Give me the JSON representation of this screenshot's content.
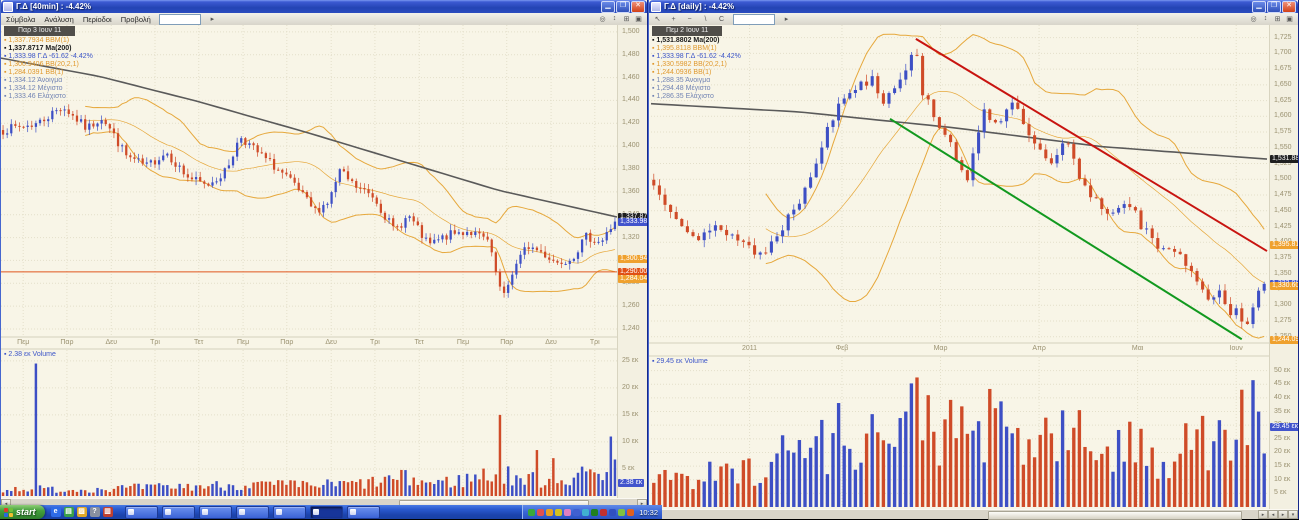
{
  "colors": {
    "up": "#3d4fc5",
    "down": "#cf4b28",
    "ma": "#5a5a5a",
    "bb": "#e6a83c",
    "grid": "#e3dfca",
    "axis_text": "#9a9170"
  },
  "windows": {
    "left": {
      "title": "Γ.Δ [40min] : -4.42%",
      "menu": [
        "Σύμβολα",
        "Ανάλυση",
        "Περίοδοι",
        "Προβολή"
      ],
      "toolbar_icons": [],
      "search_value": "",
      "go_icon": "▸",
      "right_icons": [
        {
          "name": "zoom-range-icon",
          "glyph": "◎"
        },
        {
          "name": "scale-toggle-icon",
          "glyph": "↕"
        },
        {
          "name": "grid-toggle-icon",
          "glyph": "⊞"
        },
        {
          "name": "maximize-pane-icon",
          "glyph": "▣"
        }
      ],
      "legend": {
        "tab": "Παρ 3 Ιουν 11",
        "lines": [
          {
            "text": "1,337.7934 BBM(1)",
            "color": "#e0992e"
          },
          {
            "text": "1,337.8717 Ma(200)",
            "color": "#1a1a1a",
            "bold": true
          },
          {
            "text": "1,333.98 Γ.Δ -61.62 -4.42%",
            "color": "#3c55c8"
          },
          {
            "text": "1,300.9406 BB(20,2,1)",
            "color": "#e0992e"
          },
          {
            "text": "1,284.0391 BB(1)",
            "color": "#e0992e"
          },
          {
            "text": "1,334.12 Άνοιγμα",
            "color": "#7284b4"
          },
          {
            "text": "1,334.12 Μέγιστο",
            "color": "#7284b4"
          },
          {
            "text": "1,333.46 Ελάχιστο",
            "color": "#7284b4"
          }
        ]
      },
      "chart_data": {
        "type": "candlestick",
        "timeframe": "40min",
        "bars": 150,
        "seed": 7,
        "noise": 4,
        "ylim": [
          1233,
          1506
        ],
        "yticks": [
          1240,
          1260,
          1280,
          1300,
          1320,
          1340,
          1360,
          1380,
          1400,
          1420,
          1440,
          1460,
          1480,
          1500
        ],
        "price_path": [
          [
            0,
            1414
          ],
          [
            0.057,
            1420
          ],
          [
            0.097,
            1435
          ],
          [
            0.137,
            1415
          ],
          [
            0.162,
            1426
          ],
          [
            0.202,
            1391
          ],
          [
            0.234,
            1382
          ],
          [
            0.267,
            1395
          ],
          [
            0.299,
            1374
          ],
          [
            0.331,
            1365
          ],
          [
            0.364,
            1378
          ],
          [
            0.388,
            1409
          ],
          [
            0.412,
            1396
          ],
          [
            0.444,
            1382
          ],
          [
            0.477,
            1365
          ],
          [
            0.509,
            1343
          ],
          [
            0.533,
            1352
          ],
          [
            0.55,
            1378
          ],
          [
            0.574,
            1365
          ],
          [
            0.606,
            1356
          ],
          [
            0.639,
            1326
          ],
          [
            0.663,
            1339
          ],
          [
            0.695,
            1313
          ],
          [
            0.728,
            1322
          ],
          [
            0.76,
            1326
          ],
          [
            0.792,
            1317
          ],
          [
            0.817,
            1265
          ],
          [
            0.833,
            1291
          ],
          [
            0.857,
            1313
          ],
          [
            0.881,
            1307
          ],
          [
            0.905,
            1298
          ],
          [
            0.93,
            1303
          ],
          [
            0.954,
            1321
          ],
          [
            0.978,
            1316
          ],
          [
            1,
            1334
          ]
        ],
        "last_close": 1333.98,
        "ma_path": [
          [
            0,
            1477
          ],
          [
            0.16,
            1461
          ],
          [
            0.32,
            1439
          ],
          [
            0.49,
            1413
          ],
          [
            0.65,
            1387
          ],
          [
            0.81,
            1361
          ],
          [
            1,
            1338
          ]
        ],
        "bb": {
          "window": 20,
          "mult": 2
        },
        "hlines": [
          {
            "price": 1290,
            "color": "#e0561e"
          }
        ],
        "xticks": [
          {
            "t": 0.036,
            "label": "Πεμ"
          },
          {
            "t": 0.107,
            "label": "Παρ"
          },
          {
            "t": 0.179,
            "label": "Δευ"
          },
          {
            "t": 0.25,
            "label": "Τρι"
          },
          {
            "t": 0.321,
            "label": "Τετ"
          },
          {
            "t": 0.393,
            "label": "Πεμ"
          },
          {
            "t": 0.464,
            "label": "Παρ"
          },
          {
            "t": 0.536,
            "label": "Δευ"
          },
          {
            "t": 0.607,
            "label": "Τρι"
          },
          {
            "t": 0.679,
            "label": "Τετ"
          },
          {
            "t": 0.75,
            "label": "Πεμ"
          },
          {
            "t": 0.821,
            "label": "Παρ"
          },
          {
            "t": 0.893,
            "label": "Δευ"
          },
          {
            "t": 0.964,
            "label": "Τρι"
          }
        ],
        "badges": [
          {
            "label": "1,337.87",
            "price": 1337.87,
            "bg": "#1f1f1f",
            "fg": "#fff"
          },
          {
            "label": "1,333.98",
            "price": 1333.98,
            "bg": "#4254cc",
            "fg": "#fff"
          },
          {
            "label": "1,300.94",
            "price": 1300.94,
            "bg": "#efa12e",
            "fg": "#fff"
          },
          {
            "label": "1,290.00",
            "price": 1290.0,
            "bg": "#e04f14",
            "fg": "#fff"
          },
          {
            "label": "1,284.04",
            "price": 1284.04,
            "bg": "#efa12e",
            "fg": "#fff"
          }
        ],
        "volume": {
          "legend": "2.38 εκ Volume",
          "legend_color": "#3c55c8",
          "ylim": 27,
          "ticks": [
            {
              "v": 5,
              "label": "5 εκ"
            },
            {
              "v": 10,
              "label": "10 εκ"
            },
            {
              "v": 15,
              "label": "15 εκ"
            },
            {
              "v": 20,
              "label": "20 εκ"
            },
            {
              "v": 25,
              "label": "25 εκ"
            }
          ],
          "profile": [
            [
              0,
              1.3
            ],
            [
              0.05,
              1.6
            ],
            [
              0.1,
              1.2
            ],
            [
              0.2,
              1.6
            ],
            [
              0.3,
              1.9
            ],
            [
              0.4,
              2.3
            ],
            [
              0.5,
              2.1
            ],
            [
              0.6,
              2.6
            ],
            [
              0.65,
              3.6
            ],
            [
              0.7,
              2.6
            ],
            [
              0.75,
              3.1
            ],
            [
              0.8,
              4.6
            ],
            [
              0.85,
              3.4
            ],
            [
              0.9,
              3.1
            ],
            [
              0.95,
              4.1
            ],
            [
              1,
              6.5
            ]
          ],
          "spikes": [
            [
              0.052,
              24.5
            ],
            [
              0.81,
              15
            ],
            [
              0.875,
              8.5
            ],
            [
              0.9,
              7
            ],
            [
              0.995,
              11
            ]
          ],
          "badge": {
            "label": "2.38 εκ",
            "v": 2.38,
            "bg": "#4254cc",
            "fg": "#fff"
          }
        }
      }
    },
    "right": {
      "title": "Γ.Δ [daily] : -4.42%",
      "menu": [],
      "toolbar_icons": [
        {
          "name": "cursor-tool-icon",
          "glyph": "↖"
        },
        {
          "name": "crosshair-tool-icon",
          "glyph": "+"
        },
        {
          "name": "zoom-out-tool-icon",
          "glyph": "−"
        },
        {
          "name": "trendline-tool-icon",
          "glyph": "\\"
        },
        {
          "name": "text-tool-icon",
          "glyph": "C"
        }
      ],
      "search_value": "",
      "go_icon": "▸",
      "right_icons": [
        {
          "name": "zoom-range-icon",
          "glyph": "◎"
        },
        {
          "name": "scale-toggle-icon",
          "glyph": "↕"
        },
        {
          "name": "grid-toggle-icon",
          "glyph": "⊞"
        },
        {
          "name": "maximize-pane-icon",
          "glyph": "▣"
        }
      ],
      "legend": {
        "tab": "Πεμ 2 Ιουν 11",
        "lines": [
          {
            "text": "1,531.8802 Ma(200)",
            "color": "#1a1a1a",
            "bold": true
          },
          {
            "text": "1,395.8118 BBM(1)",
            "color": "#e0992e"
          },
          {
            "text": "1,333.98 Γ.Δ -61.62 -4.42%",
            "color": "#3c55c8"
          },
          {
            "text": "1,330.5982 BB(20,2,1)",
            "color": "#e0992e"
          },
          {
            "text": "1,244.0936 BB(1)",
            "color": "#e0992e"
          },
          {
            "text": "1,288.35 Άνοιγμα",
            "color": "#7284b4"
          },
          {
            "text": "1,294.48 Μέγιστο",
            "color": "#7284b4"
          },
          {
            "text": "1,286.35 Ελάχιστο",
            "color": "#7284b4"
          }
        ]
      },
      "chart_data": {
        "type": "candlestick",
        "timeframe": "daily",
        "bars": 110,
        "seed": 13,
        "noise": 9,
        "ylim": [
          1240,
          1745
        ],
        "yticks": [
          1250,
          1275,
          1300,
          1325,
          1350,
          1375,
          1400,
          1425,
          1450,
          1475,
          1500,
          1525,
          1550,
          1575,
          1600,
          1625,
          1650,
          1675,
          1700,
          1725
        ],
        "price_path": [
          [
            0,
            1489
          ],
          [
            0.073,
            1402
          ],
          [
            0.106,
            1426
          ],
          [
            0.179,
            1378
          ],
          [
            0.237,
            1465
          ],
          [
            0.285,
            1577
          ],
          [
            0.31,
            1632
          ],
          [
            0.334,
            1648
          ],
          [
            0.359,
            1664
          ],
          [
            0.375,
            1624
          ],
          [
            0.432,
            1704
          ],
          [
            0.44,
            1640
          ],
          [
            0.465,
            1593
          ],
          [
            0.481,
            1569
          ],
          [
            0.498,
            1513
          ],
          [
            0.514,
            1505
          ],
          [
            0.538,
            1608
          ],
          [
            0.563,
            1593
          ],
          [
            0.587,
            1616
          ],
          [
            0.604,
            1593
          ],
          [
            0.628,
            1545
          ],
          [
            0.652,
            1521
          ],
          [
            0.677,
            1561
          ],
          [
            0.701,
            1489
          ],
          [
            0.726,
            1466
          ],
          [
            0.75,
            1442
          ],
          [
            0.775,
            1473
          ],
          [
            0.799,
            1426
          ],
          [
            0.816,
            1402
          ],
          [
            0.84,
            1378
          ],
          [
            0.856,
            1394
          ],
          [
            0.881,
            1354
          ],
          [
            0.897,
            1330
          ],
          [
            0.914,
            1307
          ],
          [
            0.93,
            1322
          ],
          [
            0.946,
            1275
          ],
          [
            0.957,
            1291
          ],
          [
            0.967,
            1262
          ],
          [
            0.979,
            1298
          ],
          [
            0.99,
            1322
          ],
          [
            1,
            1334
          ]
        ],
        "last_close": 1333.98,
        "ma_path": [
          [
            0,
            1620
          ],
          [
            0.24,
            1607
          ],
          [
            0.49,
            1582
          ],
          [
            0.73,
            1552
          ],
          [
            1,
            1532
          ]
        ],
        "bb": {
          "window": 20,
          "mult": 2
        },
        "hlines": [],
        "lines": [
          {
            "t1": 0.43,
            "p1": 1723,
            "t2": 1.0,
            "p2": 1386,
            "color": "#c81410",
            "w": 2
          },
          {
            "t1": 0.388,
            "p1": 1596,
            "t2": 0.959,
            "p2": 1246,
            "color": "#12991f",
            "w": 2
          }
        ],
        "xticks": [
          {
            "t": 0.16,
            "label": "2011"
          },
          {
            "t": 0.31,
            "label": "Φεβ"
          },
          {
            "t": 0.47,
            "label": "Μαρ"
          },
          {
            "t": 0.63,
            "label": "Απρ"
          },
          {
            "t": 0.79,
            "label": "Μαι"
          },
          {
            "t": 0.95,
            "label": "Ιουν"
          }
        ],
        "badges": [
          {
            "label": "1,531.88",
            "price": 1531.88,
            "bg": "#1f1f1f",
            "fg": "#fff"
          },
          {
            "label": "1,395.81",
            "price": 1395.81,
            "bg": "#efa12e",
            "fg": "#fff"
          },
          {
            "label": "1,333.98",
            "price": 1333.98,
            "bg": "#4254cc",
            "fg": "#fff"
          },
          {
            "label": "1,330.60",
            "price": 1330.6,
            "bg": "#efa12e",
            "fg": "#fff"
          },
          {
            "label": "1,244.09",
            "price": 1244.09,
            "bg": "#efa12e",
            "fg": "#fff"
          }
        ],
        "volume": {
          "legend": "29.45 εκ Volume",
          "legend_color": "#3c55c8",
          "ylim": 55,
          "ticks": [
            {
              "v": 5,
              "label": "5 εκ"
            },
            {
              "v": 10,
              "label": "10 εκ"
            },
            {
              "v": 15,
              "label": "15 εκ"
            },
            {
              "v": 20,
              "label": "20 εκ"
            },
            {
              "v": 25,
              "label": "25 εκ"
            },
            {
              "v": 30,
              "label": "30 εκ"
            },
            {
              "v": 35,
              "label": "35 εκ"
            },
            {
              "v": 40,
              "label": "40 εκ"
            },
            {
              "v": 45,
              "label": "45 εκ"
            },
            {
              "v": 50,
              "label": "50 εκ"
            }
          ],
          "profile": [
            [
              0,
              14
            ],
            [
              0.05,
              13
            ],
            [
              0.1,
              12
            ],
            [
              0.15,
              15
            ],
            [
              0.2,
              20
            ],
            [
              0.25,
              24
            ],
            [
              0.3,
              28
            ],
            [
              0.35,
              30
            ],
            [
              0.4,
              26
            ],
            [
              0.44,
              44
            ],
            [
              0.47,
              30
            ],
            [
              0.5,
              28
            ],
            [
              0.55,
              32
            ],
            [
              0.6,
              25
            ],
            [
              0.65,
              28
            ],
            [
              0.7,
              26
            ],
            [
              0.75,
              24
            ],
            [
              0.8,
              22
            ],
            [
              0.85,
              20
            ],
            [
              0.88,
              34
            ],
            [
              0.92,
              22
            ],
            [
              0.95,
              28
            ],
            [
              0.97,
              38
            ],
            [
              1,
              30
            ]
          ],
          "spikes": [
            [
              0.435,
              47.5
            ],
            [
              0.45,
              41
            ]
          ],
          "badge": {
            "label": "29.45 εκ",
            "v": 29.45,
            "bg": "#4254cc",
            "fg": "#fff"
          }
        }
      }
    }
  },
  "taskbar": {
    "start_label": "start",
    "clock": "10:32",
    "quick_launch": [
      {
        "name": "launch-browser-icon",
        "glyph": "e",
        "color": "#2e6be6"
      },
      {
        "name": "launch-desktop-icon",
        "glyph": "▤",
        "color": "#3aa048"
      },
      {
        "name": "launch-folder-icon",
        "glyph": "▨",
        "color": "#e0a828"
      },
      {
        "name": "launch-help-icon",
        "glyph": "?",
        "color": "#8890a0"
      },
      {
        "name": "launch-chart-icon",
        "glyph": "▥",
        "color": "#c04030"
      }
    ],
    "window_buttons": [
      {
        "active": false
      },
      {
        "active": false
      },
      {
        "active": false
      },
      {
        "active": false
      },
      {
        "active": false
      },
      {
        "active": true
      },
      {
        "active": false
      }
    ],
    "tray_icons": [
      "#3aa83a",
      "#e05050",
      "#e8a020",
      "#d4c020",
      "#e080c0",
      "#4060d0",
      "#40b0d0",
      "#208020",
      "#c03030",
      "#3050c0",
      "#80c040",
      "#e06020"
    ]
  }
}
